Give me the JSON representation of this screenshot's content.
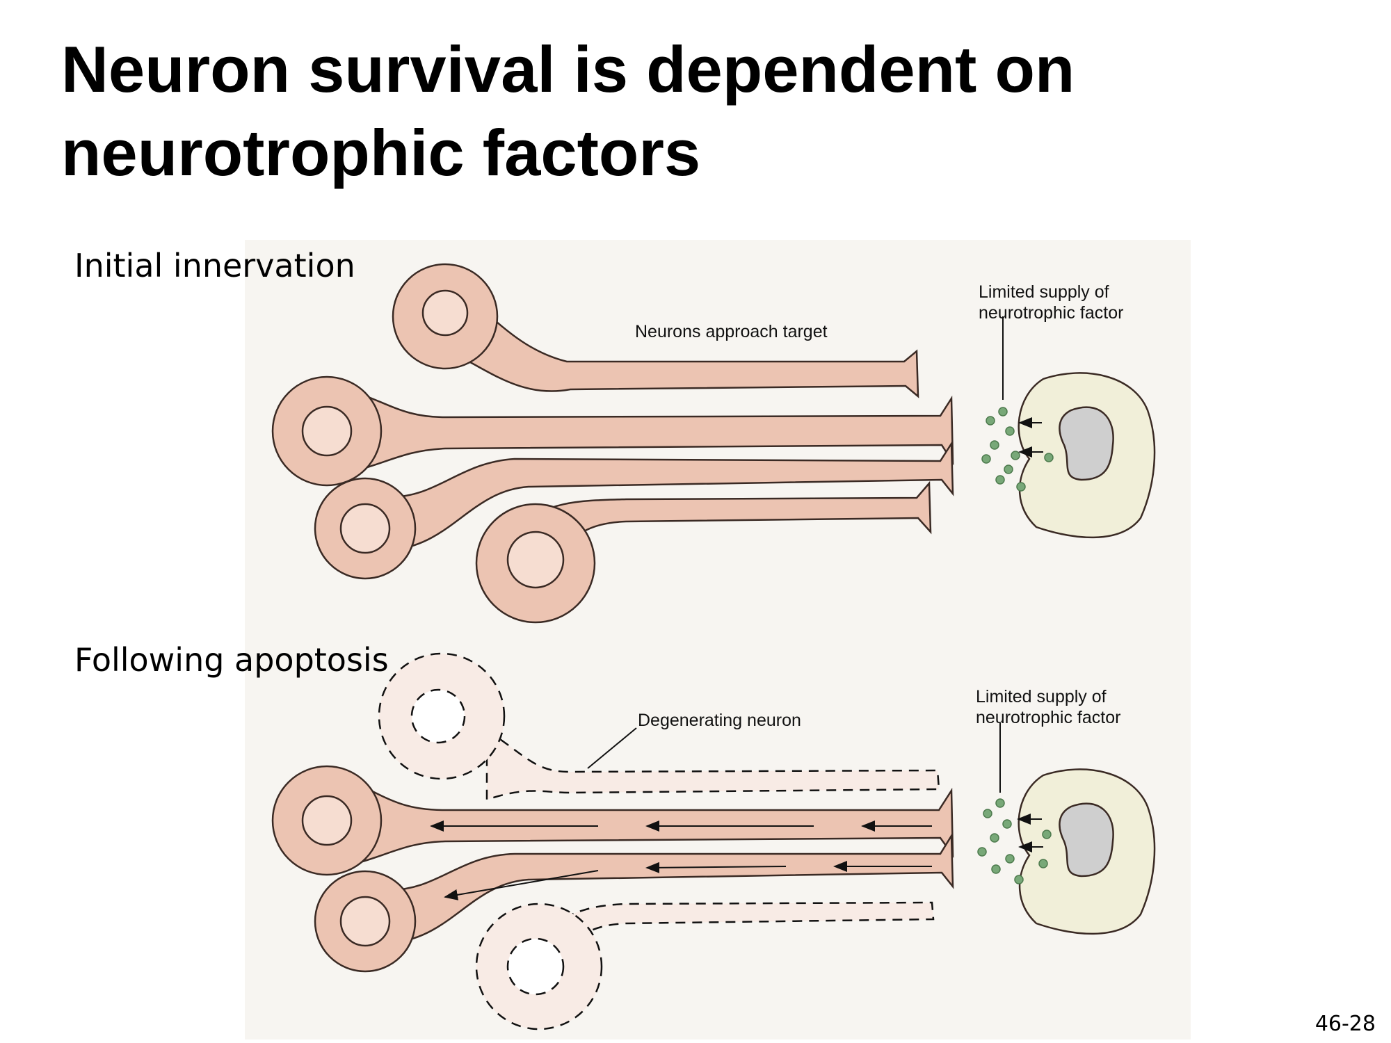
{
  "slide": {
    "title_line1": "Neuron survival is dependent on",
    "title_line2": "neurotrophic factors",
    "slide_number": "46-28"
  },
  "panels": {
    "initial": {
      "label": "Initial innervation",
      "annotation_approach": "Neurons approach target",
      "annotation_supply_line1": "Limited supply of",
      "annotation_supply_line2": "neurotrophic factor"
    },
    "apoptosis": {
      "label": "Following apoptosis",
      "annotation_degenerating": "Degenerating neuron",
      "annotation_supply_line1": "Limited supply of",
      "annotation_supply_line2": "neurotrophic factor"
    }
  },
  "colors": {
    "neuron_fill": "#ecc4b2",
    "nucleus_fill": "#f6ddd1",
    "degenerating_fill": "#f8ebe5",
    "target_fill": "#f1efd9",
    "target_nucleus": "#cfcfcf",
    "factor_dot": "#78a878",
    "page_tint": "#f7f5f1"
  }
}
